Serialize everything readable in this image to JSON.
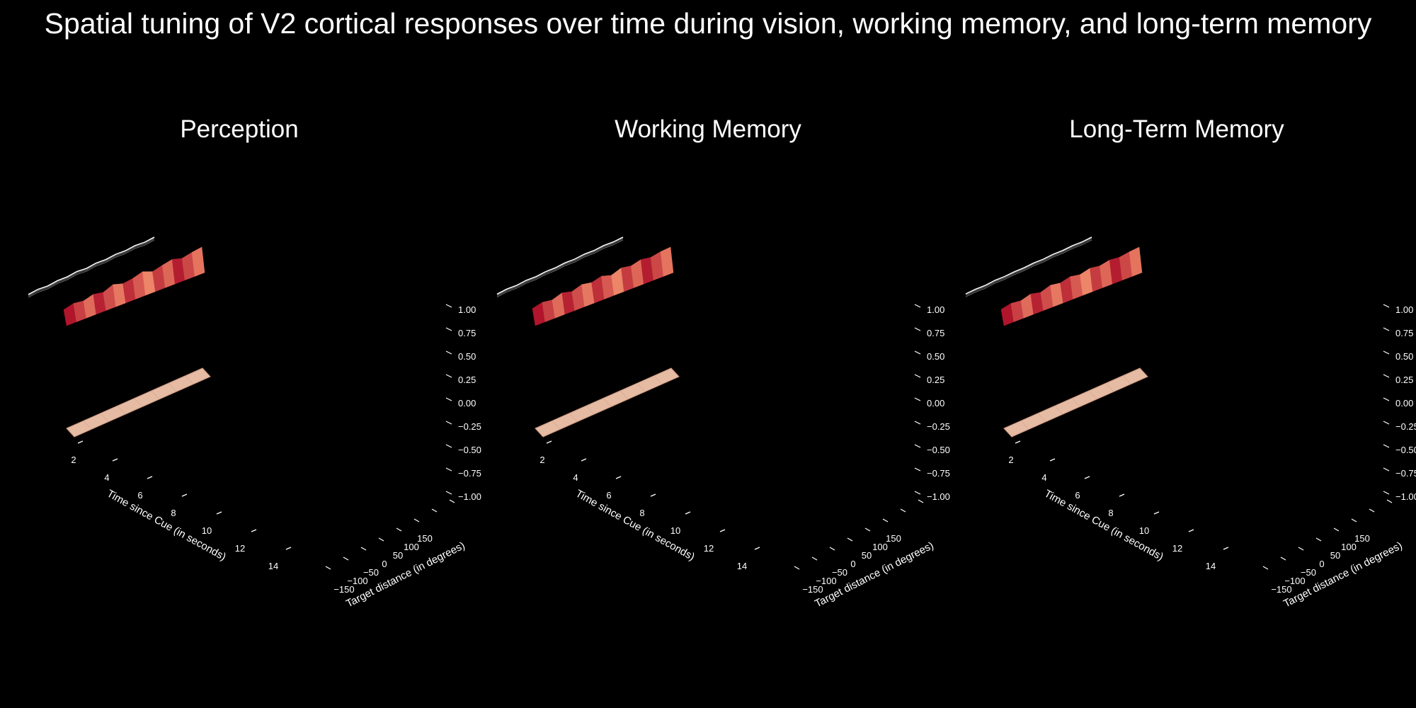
{
  "title": "Spatial tuning of V2 cortical responses over time during vision, working memory, and long-term memory",
  "chart_data": {
    "type": "surface3d",
    "colors": {
      "background": "#000000",
      "text": "#ffffff",
      "surface_light": "#f08a6a",
      "surface_dark": "#b0152c",
      "floor": "#e6bba3",
      "contour": "#ffffff"
    },
    "axes": {
      "xlabel": "Time since Cue (in seconds)",
      "ylabel": "Target distance (in degrees)",
      "x_ticks": [
        "2",
        "4",
        "6",
        "8",
        "10",
        "12",
        "14"
      ],
      "y_ticks": [
        "−150",
        "−100",
        "−50",
        "0",
        "50",
        "100",
        "150"
      ],
      "z_ticks": [
        "1.00",
        "0.75",
        "0.50",
        "0.25",
        "0.00",
        "−0.25",
        "−0.50",
        "−0.75",
        "−1.00"
      ]
    },
    "panels": [
      {
        "title": "Perception",
        "surface_profile": [
          0.48,
          0.62,
          0.55,
          0.7,
          0.6,
          0.82,
          0.66,
          0.74,
          0.9,
          0.7,
          0.84,
          0.95,
          0.8,
          0.92,
          1.0
        ],
        "contour_profile": [
          0.4,
          0.55,
          0.45,
          0.62,
          0.58,
          0.76,
          0.63,
          0.8,
          0.72,
          0.88,
          0.8,
          0.95,
          0.86,
          1.0
        ]
      },
      {
        "title": "Working Memory",
        "surface_profile": [
          0.55,
          0.68,
          0.6,
          0.78,
          0.64,
          0.82,
          0.72,
          0.86,
          0.7,
          0.9,
          0.8,
          0.94,
          0.85,
          0.96,
          1.0
        ],
        "contour_profile": [
          0.45,
          0.58,
          0.52,
          0.66,
          0.6,
          0.74,
          0.7,
          0.82,
          0.76,
          0.9,
          0.84,
          0.96,
          0.9,
          1.0
        ]
      },
      {
        "title": "Long-Term Memory",
        "surface_profile": [
          0.5,
          0.62,
          0.56,
          0.72,
          0.6,
          0.78,
          0.7,
          0.84,
          0.74,
          0.88,
          0.8,
          0.92,
          0.86,
          0.95,
          1.0
        ],
        "contour_profile": [
          0.48,
          0.56,
          0.52,
          0.66,
          0.62,
          0.72,
          0.7,
          0.8,
          0.76,
          0.88,
          0.84,
          0.94,
          0.9,
          1.0
        ]
      }
    ]
  }
}
